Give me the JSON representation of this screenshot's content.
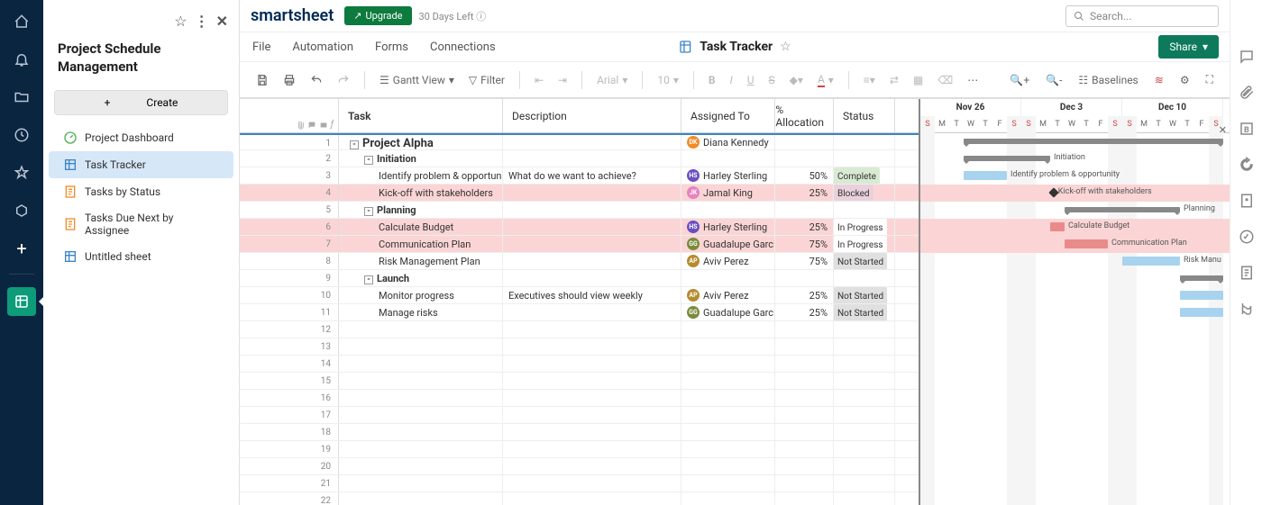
{
  "leftRail": {
    "icons": [
      "home-icon",
      "bell-icon",
      "folder-icon",
      "clock-icon",
      "star-icon",
      "app-icon",
      "plus-icon"
    ],
    "activeIcon": "sheet-icon"
  },
  "sidePanel": {
    "title": "Project Schedule Management",
    "createLabel": "Create",
    "items": [
      {
        "icon": "dash",
        "label": "Project Dashboard",
        "color": "#4caf50"
      },
      {
        "icon": "grid",
        "label": "Task Tracker",
        "color": "#3d85c6",
        "active": true
      },
      {
        "icon": "report",
        "label": "Tasks by Status",
        "color": "#f28c28"
      },
      {
        "icon": "report",
        "label": "Tasks Due Next by Assignee",
        "color": "#f28c28"
      },
      {
        "icon": "grid",
        "label": "Untitled sheet",
        "color": "#3d85c6"
      }
    ]
  },
  "topBar": {
    "logo": "smartsheet",
    "upgradeLabel": "Upgrade",
    "daysLeft": "30 Days Left",
    "searchPlaceholder": "Search..."
  },
  "menuBar": {
    "items": [
      "File",
      "Automation",
      "Forms",
      "Connections"
    ],
    "sheetTitle": "Task Tracker",
    "shareLabel": "Share"
  },
  "toolbar": {
    "viewLabel": "Gantt View",
    "filterLabel": "Filter",
    "fontName": "Arial",
    "fontSize": "10",
    "baselinesLabel": "Baselines"
  },
  "grid": {
    "columns": {
      "task": "Task",
      "description": "Description",
      "assigned": "Assigned To",
      "allocation": "% Allocation",
      "status": "Status"
    },
    "rows": [
      {
        "n": 1,
        "task": "Project Alpha",
        "indent": 0,
        "expand": "-",
        "assigned": "Diana Kennedy",
        "avBg": "#f28c28",
        "avTxt": "DK"
      },
      {
        "n": 2,
        "task": "Initiation",
        "indent": 1,
        "expand": "-"
      },
      {
        "n": 3,
        "task": "Identify problem & opportunity",
        "indent": 2,
        "desc": "What do we want to achieve?",
        "assigned": "Harley Sterling",
        "avBg": "#6a4fbf",
        "avTxt": "HS",
        "alloc": "50%",
        "status": "Complete",
        "statusBg": "#d9ead3"
      },
      {
        "n": 4,
        "task": "Kick-off with stakeholders",
        "indent": 2,
        "assigned": "Jamal King",
        "avBg": "#e683c0",
        "avTxt": "JK",
        "alloc": "25%",
        "status": "Blocked",
        "statusBg": "#ead1dc",
        "hl": true
      },
      {
        "n": 5,
        "task": "Planning",
        "indent": 1,
        "expand": "-"
      },
      {
        "n": 6,
        "task": "Calculate Budget",
        "indent": 2,
        "assigned": "Harley Sterling",
        "avBg": "#6a4fbf",
        "avTxt": "HS",
        "alloc": "25%",
        "status": "In Progress",
        "statusBg": "#fff",
        "hl": true
      },
      {
        "n": 7,
        "task": "Communication Plan",
        "indent": 2,
        "assigned": "Guadalupe Garcia",
        "avBg": "#7a8b3a",
        "avTxt": "GG",
        "alloc": "75%",
        "status": "In Progress",
        "statusBg": "#fff",
        "hl": true
      },
      {
        "n": 8,
        "task": "Risk Management Plan",
        "indent": 2,
        "assigned": "Aviv Perez",
        "avBg": "#b58b2e",
        "avTxt": "AP",
        "alloc": "75%",
        "status": "Not Started",
        "statusBg": "#e0e0e0"
      },
      {
        "n": 9,
        "task": "Launch",
        "indent": 1,
        "expand": "-"
      },
      {
        "n": 10,
        "task": "Monitor progress",
        "indent": 2,
        "desc": "Executives should view weekly",
        "assigned": "Aviv Perez",
        "avBg": "#b58b2e",
        "avTxt": "AP",
        "alloc": "25%",
        "status": "Not Started",
        "statusBg": "#e0e0e0"
      },
      {
        "n": 11,
        "task": "Manage risks",
        "indent": 2,
        "assigned": "Guadalupe Garcia",
        "avBg": "#7a8b3a",
        "avTxt": "GG",
        "alloc": "25%",
        "status": "Not Started",
        "statusBg": "#e0e0e0"
      },
      {
        "n": 12
      },
      {
        "n": 13
      },
      {
        "n": 14
      },
      {
        "n": 15
      },
      {
        "n": 16
      },
      {
        "n": 17
      },
      {
        "n": 18
      },
      {
        "n": 19
      },
      {
        "n": 20
      },
      {
        "n": 21
      },
      {
        "n": 22
      }
    ]
  },
  "gantt": {
    "dayWidth": 16,
    "months": [
      {
        "label": "Nov 26",
        "span": 7
      },
      {
        "label": "Dec 3",
        "span": 7
      },
      {
        "label": "Dec 10",
        "span": 7
      }
    ],
    "days": [
      "S",
      "M",
      "T",
      "W",
      "T",
      "F",
      "S",
      "S",
      "M",
      "T",
      "W",
      "T",
      "F",
      "S",
      "S",
      "M",
      "T",
      "W",
      "T",
      "F",
      "S"
    ],
    "weekendIdx": [
      0,
      6,
      7,
      13,
      14,
      20
    ],
    "bars": [
      {
        "row": 0,
        "start": 3,
        "span": 18,
        "type": "summary"
      },
      {
        "row": 1,
        "start": 3,
        "span": 6,
        "type": "summary",
        "label": "Initiation"
      },
      {
        "row": 2,
        "start": 3,
        "span": 3,
        "color": "#a7d3ee",
        "label": "Identify problem & opportunity"
      },
      {
        "row": 3,
        "start": 9,
        "span": 0.3,
        "color": "#333",
        "label": "Kick-off with stakeholders",
        "hl": true,
        "diamond": true
      },
      {
        "row": 4,
        "start": 10,
        "span": 8,
        "type": "summary",
        "label": "Planning"
      },
      {
        "row": 5,
        "start": 9,
        "span": 1,
        "color": "#e98b8b",
        "label": "Calculate Budget",
        "hl": true
      },
      {
        "row": 6,
        "start": 10,
        "span": 3,
        "color": "#e98b8b",
        "label": "Communication Plan",
        "hl": true
      },
      {
        "row": 7,
        "start": 14,
        "span": 4,
        "color": "#a7d3ee",
        "label": "Risk Manu"
      },
      {
        "row": 8,
        "start": 18,
        "span": 3,
        "type": "summary"
      },
      {
        "row": 9,
        "start": 18,
        "span": 3,
        "color": "#a7d3ee"
      },
      {
        "row": 10,
        "start": 18,
        "span": 3,
        "color": "#a7d3ee"
      }
    ]
  }
}
